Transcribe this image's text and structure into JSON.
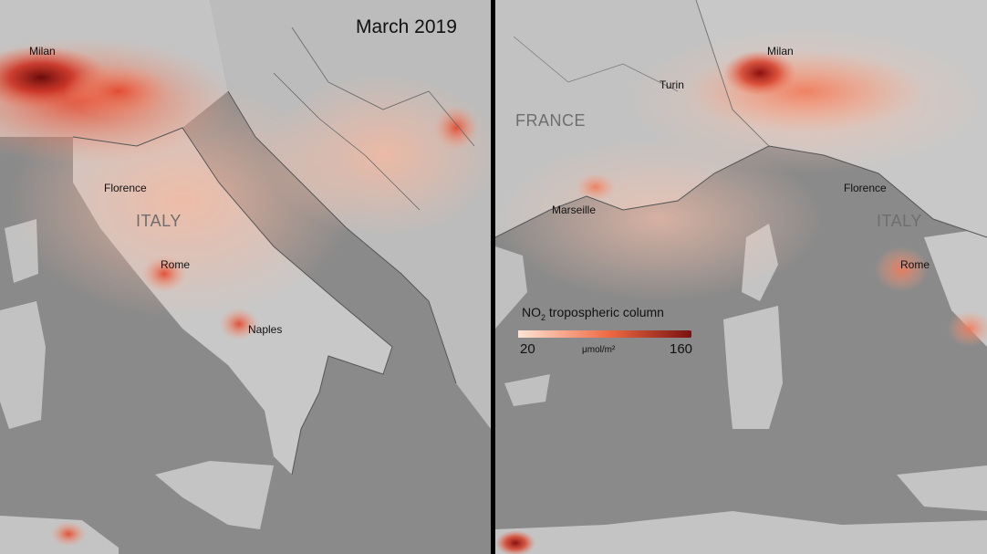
{
  "left_panel": {
    "title": "March 2019",
    "cities": [
      "Milan",
      "Florence",
      "Rome",
      "Naples"
    ],
    "country": "ITALY"
  },
  "right_panel": {
    "cities": [
      "Milan",
      "Turin",
      "Marseille",
      "Florence",
      "Rome"
    ],
    "countries": [
      "FRANCE",
      "ITALY"
    ]
  },
  "legend": {
    "title_main": "NO",
    "title_sub": "2",
    "title_rest": " tropospheric column",
    "min": "20",
    "max": "160",
    "unit": "μmol/m²",
    "color_low": "#fde4d6",
    "color_high": "#6e0a0a"
  }
}
